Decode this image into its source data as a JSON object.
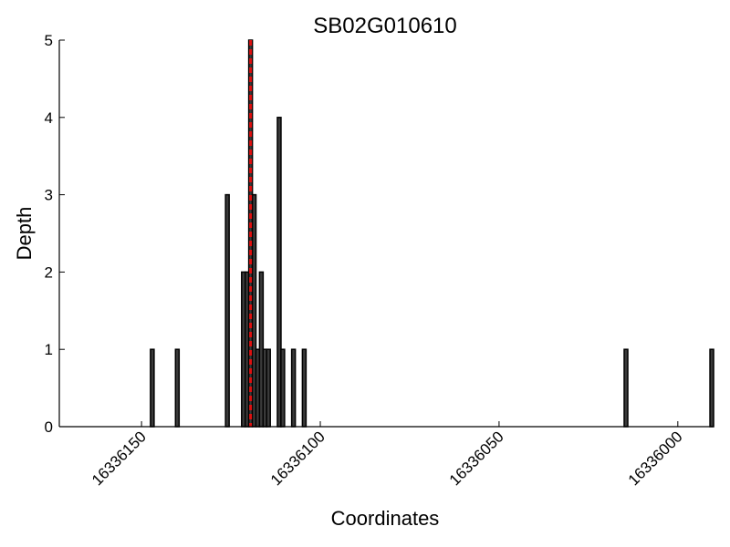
{
  "chart_data": {
    "type": "bar",
    "title": "SB02G010610",
    "xlabel": "Coordinates",
    "ylabel": "Depth",
    "x_reversed": true,
    "xlim": [
      16336173,
      16335990
    ],
    "ylim": [
      0,
      5
    ],
    "x_ticks": [
      16336150,
      16336100,
      16336050,
      16336000
    ],
    "y_ticks": [
      0,
      1,
      2,
      3,
      4,
      5
    ],
    "grid": false,
    "bar_color": "#3a3a3a",
    "marker_color": "#e01010",
    "marker_x": 16336119.5,
    "points": [
      {
        "x": 16336147,
        "y": 1
      },
      {
        "x": 16336140,
        "y": 1
      },
      {
        "x": 16336126,
        "y": 3
      },
      {
        "x": 16336121.5,
        "y": 2
      },
      {
        "x": 16336120.5,
        "y": 2
      },
      {
        "x": 16336119.5,
        "y": 5
      },
      {
        "x": 16336118.5,
        "y": 3
      },
      {
        "x": 16336117.5,
        "y": 1
      },
      {
        "x": 16336116.5,
        "y": 2
      },
      {
        "x": 16336115.5,
        "y": 1
      },
      {
        "x": 16336114.5,
        "y": 1
      },
      {
        "x": 16336111.5,
        "y": 4
      },
      {
        "x": 16336110.5,
        "y": 1
      },
      {
        "x": 16336107.5,
        "y": 1
      },
      {
        "x": 16336104.5,
        "y": 1
      },
      {
        "x": 16336014.5,
        "y": 1
      },
      {
        "x": 16335990.5,
        "y": 1
      }
    ]
  }
}
